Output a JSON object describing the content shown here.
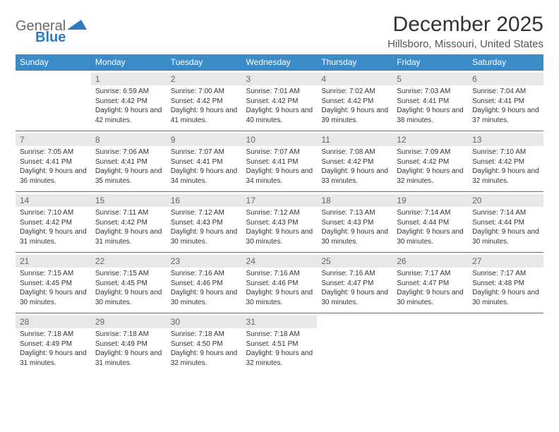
{
  "brand": {
    "part1": "General",
    "part2": "Blue"
  },
  "title": "December 2025",
  "location": "Hillsboro, Missouri, United States",
  "colors": {
    "header_bg": "#3b8bc9",
    "header_text": "#ffffff",
    "daynum_bg": "#e8e8e8",
    "border": "#2f7ac0",
    "brand_gray": "#6b6b6b",
    "brand_blue": "#2f7ac0"
  },
  "dayHeaders": [
    "Sunday",
    "Monday",
    "Tuesday",
    "Wednesday",
    "Thursday",
    "Friday",
    "Saturday"
  ],
  "weeks": [
    [
      {
        "n": "",
        "sr": "",
        "ss": "",
        "dl": ""
      },
      {
        "n": "1",
        "sr": "6:59 AM",
        "ss": "4:42 PM",
        "dl": "9 hours and 42 minutes."
      },
      {
        "n": "2",
        "sr": "7:00 AM",
        "ss": "4:42 PM",
        "dl": "9 hours and 41 minutes."
      },
      {
        "n": "3",
        "sr": "7:01 AM",
        "ss": "4:42 PM",
        "dl": "9 hours and 40 minutes."
      },
      {
        "n": "4",
        "sr": "7:02 AM",
        "ss": "4:42 PM",
        "dl": "9 hours and 39 minutes."
      },
      {
        "n": "5",
        "sr": "7:03 AM",
        "ss": "4:41 PM",
        "dl": "9 hours and 38 minutes."
      },
      {
        "n": "6",
        "sr": "7:04 AM",
        "ss": "4:41 PM",
        "dl": "9 hours and 37 minutes."
      }
    ],
    [
      {
        "n": "7",
        "sr": "7:05 AM",
        "ss": "4:41 PM",
        "dl": "9 hours and 36 minutes."
      },
      {
        "n": "8",
        "sr": "7:06 AM",
        "ss": "4:41 PM",
        "dl": "9 hours and 35 minutes."
      },
      {
        "n": "9",
        "sr": "7:07 AM",
        "ss": "4:41 PM",
        "dl": "9 hours and 34 minutes."
      },
      {
        "n": "10",
        "sr": "7:07 AM",
        "ss": "4:41 PM",
        "dl": "9 hours and 34 minutes."
      },
      {
        "n": "11",
        "sr": "7:08 AM",
        "ss": "4:42 PM",
        "dl": "9 hours and 33 minutes."
      },
      {
        "n": "12",
        "sr": "7:09 AM",
        "ss": "4:42 PM",
        "dl": "9 hours and 32 minutes."
      },
      {
        "n": "13",
        "sr": "7:10 AM",
        "ss": "4:42 PM",
        "dl": "9 hours and 32 minutes."
      }
    ],
    [
      {
        "n": "14",
        "sr": "7:10 AM",
        "ss": "4:42 PM",
        "dl": "9 hours and 31 minutes."
      },
      {
        "n": "15",
        "sr": "7:11 AM",
        "ss": "4:42 PM",
        "dl": "9 hours and 31 minutes."
      },
      {
        "n": "16",
        "sr": "7:12 AM",
        "ss": "4:43 PM",
        "dl": "9 hours and 30 minutes."
      },
      {
        "n": "17",
        "sr": "7:12 AM",
        "ss": "4:43 PM",
        "dl": "9 hours and 30 minutes."
      },
      {
        "n": "18",
        "sr": "7:13 AM",
        "ss": "4:43 PM",
        "dl": "9 hours and 30 minutes."
      },
      {
        "n": "19",
        "sr": "7:14 AM",
        "ss": "4:44 PM",
        "dl": "9 hours and 30 minutes."
      },
      {
        "n": "20",
        "sr": "7:14 AM",
        "ss": "4:44 PM",
        "dl": "9 hours and 30 minutes."
      }
    ],
    [
      {
        "n": "21",
        "sr": "7:15 AM",
        "ss": "4:45 PM",
        "dl": "9 hours and 30 minutes."
      },
      {
        "n": "22",
        "sr": "7:15 AM",
        "ss": "4:45 PM",
        "dl": "9 hours and 30 minutes."
      },
      {
        "n": "23",
        "sr": "7:16 AM",
        "ss": "4:46 PM",
        "dl": "9 hours and 30 minutes."
      },
      {
        "n": "24",
        "sr": "7:16 AM",
        "ss": "4:46 PM",
        "dl": "9 hours and 30 minutes."
      },
      {
        "n": "25",
        "sr": "7:16 AM",
        "ss": "4:47 PM",
        "dl": "9 hours and 30 minutes."
      },
      {
        "n": "26",
        "sr": "7:17 AM",
        "ss": "4:47 PM",
        "dl": "9 hours and 30 minutes."
      },
      {
        "n": "27",
        "sr": "7:17 AM",
        "ss": "4:48 PM",
        "dl": "9 hours and 30 minutes."
      }
    ],
    [
      {
        "n": "28",
        "sr": "7:18 AM",
        "ss": "4:49 PM",
        "dl": "9 hours and 31 minutes."
      },
      {
        "n": "29",
        "sr": "7:18 AM",
        "ss": "4:49 PM",
        "dl": "9 hours and 31 minutes."
      },
      {
        "n": "30",
        "sr": "7:18 AM",
        "ss": "4:50 PM",
        "dl": "9 hours and 32 minutes."
      },
      {
        "n": "31",
        "sr": "7:18 AM",
        "ss": "4:51 PM",
        "dl": "9 hours and 32 minutes."
      },
      {
        "n": "",
        "sr": "",
        "ss": "",
        "dl": ""
      },
      {
        "n": "",
        "sr": "",
        "ss": "",
        "dl": ""
      },
      {
        "n": "",
        "sr": "",
        "ss": "",
        "dl": ""
      }
    ]
  ],
  "labels": {
    "sunrise": "Sunrise: ",
    "sunset": "Sunset: ",
    "daylight": "Daylight: "
  }
}
